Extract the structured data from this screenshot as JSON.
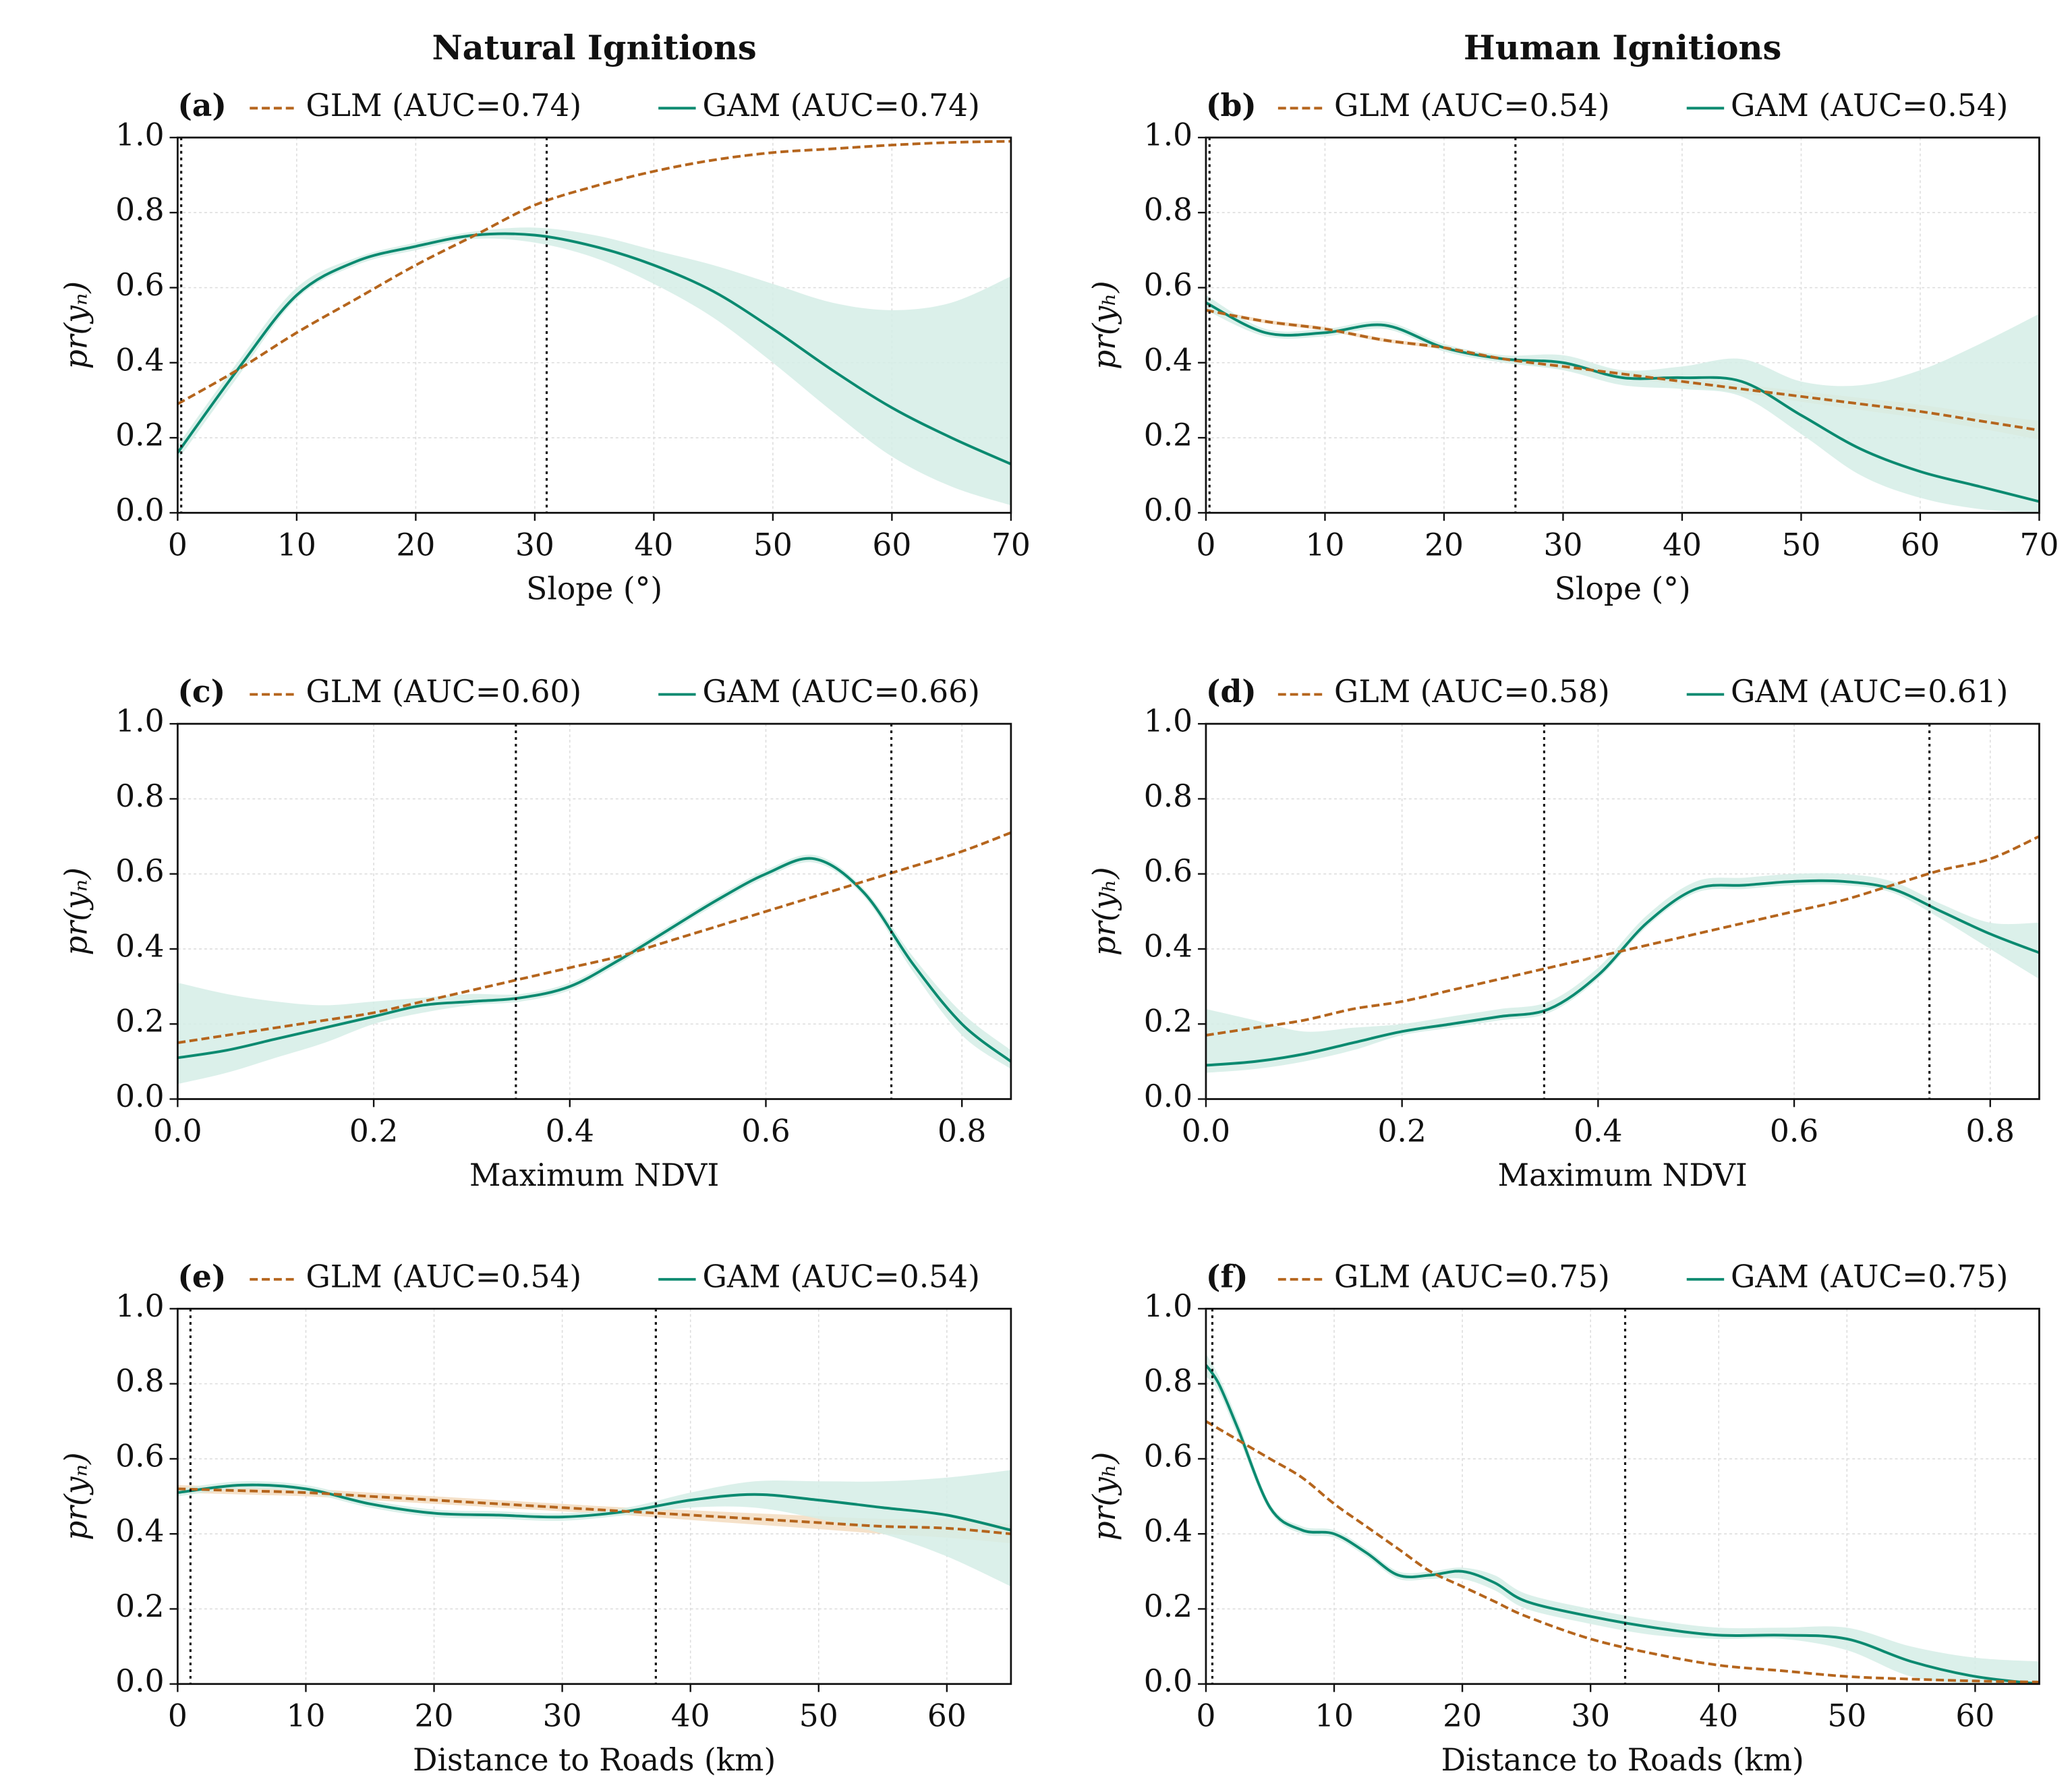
{
  "column_titles": [
    "Natural Ignitions",
    "Human Ignitions"
  ],
  "chart_data": [
    {
      "type": "line",
      "panel_label": "(a)",
      "xlabel": "Slope (°)",
      "ylabel": "pr(yₙ)",
      "x": [
        0,
        5,
        10,
        15,
        20,
        25,
        30,
        35,
        40,
        45,
        50,
        55,
        60,
        65,
        70
      ],
      "series": [
        {
          "name": "GLM (AUC=0.74)",
          "color": "#b5651d",
          "dash": true,
          "values": [
            0.29,
            0.38,
            0.48,
            0.57,
            0.66,
            0.74,
            0.82,
            0.87,
            0.91,
            0.94,
            0.96,
            0.97,
            0.98,
            0.987,
            0.99
          ]
        },
        {
          "name": "GAM (AUC=0.74)",
          "color": "#0b8a70",
          "band_color": "#d5ede6",
          "values": [
            0.16,
            0.38,
            0.58,
            0.67,
            0.71,
            0.74,
            0.74,
            0.71,
            0.66,
            0.59,
            0.49,
            0.38,
            0.28,
            0.2,
            0.13
          ],
          "lower": [
            0.14,
            0.36,
            0.57,
            0.66,
            0.7,
            0.73,
            0.72,
            0.68,
            0.61,
            0.52,
            0.4,
            0.27,
            0.15,
            0.07,
            0.02
          ],
          "upper": [
            0.18,
            0.4,
            0.6,
            0.68,
            0.72,
            0.75,
            0.76,
            0.74,
            0.7,
            0.66,
            0.61,
            0.56,
            0.54,
            0.56,
            0.63
          ]
        }
      ],
      "vlines": [
        0.3,
        31
      ],
      "xlim": [
        0,
        70
      ],
      "ylim": [
        0,
        1
      ],
      "xticks": [
        0,
        10,
        20,
        30,
        40,
        50,
        60,
        70
      ],
      "yticks": [
        {
          "value": 0,
          "label": "0.0"
        },
        0.2,
        0.4,
        0.6,
        0.8,
        {
          "value": 1,
          "label": "1.0"
        }
      ],
      "grid": true
    },
    {
      "type": "line",
      "panel_label": "(b)",
      "xlabel": "Slope (°)",
      "ylabel": "pr(yₕ)",
      "x": [
        0,
        5,
        10,
        15,
        20,
        25,
        30,
        35,
        40,
        45,
        50,
        55,
        60,
        65,
        70
      ],
      "series": [
        {
          "name": "GLM (AUC=0.54)",
          "color": "#b5651d",
          "dash": true,
          "band_color": "#f3dcc0",
          "values": [
            0.54,
            0.51,
            0.49,
            0.46,
            0.44,
            0.41,
            0.39,
            0.37,
            0.35,
            0.33,
            0.31,
            0.29,
            0.27,
            0.245,
            0.22
          ],
          "lower": [
            0.535,
            0.505,
            0.485,
            0.455,
            0.435,
            0.405,
            0.383,
            0.362,
            0.34,
            0.318,
            0.296,
            0.274,
            0.252,
            0.225,
            0.195
          ],
          "upper": [
            0.545,
            0.515,
            0.495,
            0.465,
            0.445,
            0.415,
            0.397,
            0.378,
            0.36,
            0.342,
            0.324,
            0.306,
            0.288,
            0.265,
            0.245
          ]
        },
        {
          "name": "GAM (AUC=0.54)",
          "color": "#0b8a70",
          "band_color": "#d5ede6",
          "values": [
            0.56,
            0.48,
            0.48,
            0.5,
            0.44,
            0.41,
            0.4,
            0.36,
            0.36,
            0.35,
            0.26,
            0.17,
            0.11,
            0.07,
            0.03
          ],
          "lower": [
            0.54,
            0.47,
            0.47,
            0.49,
            0.43,
            0.4,
            0.38,
            0.34,
            0.33,
            0.31,
            0.21,
            0.1,
            0.04,
            0.01,
            0
          ],
          "upper": [
            0.58,
            0.49,
            0.49,
            0.51,
            0.45,
            0.42,
            0.42,
            0.38,
            0.39,
            0.41,
            0.35,
            0.34,
            0.38,
            0.45,
            0.53
          ]
        }
      ],
      "vlines": [
        0.3,
        26
      ],
      "xlim": [
        0,
        70
      ],
      "ylim": [
        0,
        1
      ],
      "xticks": [
        0,
        10,
        20,
        30,
        40,
        50,
        60,
        70
      ],
      "yticks": [
        {
          "value": 0,
          "label": "0.0"
        },
        0.2,
        0.4,
        0.6,
        0.8,
        {
          "value": 1,
          "label": "1.0"
        }
      ],
      "grid": true
    },
    {
      "type": "line",
      "panel_label": "(c)",
      "xlabel": "Maximum NDVI",
      "ylabel": "pr(yₙ)",
      "x": [
        0,
        0.05,
        0.1,
        0.15,
        0.2,
        0.25,
        0.3,
        0.35,
        0.4,
        0.45,
        0.5,
        0.55,
        0.6,
        0.65,
        0.7,
        0.75,
        0.8,
        0.85
      ],
      "series": [
        {
          "name": "GLM (AUC=0.60)",
          "color": "#b5651d",
          "dash": true,
          "values": [
            0.15,
            0.17,
            0.19,
            0.21,
            0.23,
            0.26,
            0.29,
            0.32,
            0.35,
            0.38,
            0.42,
            0.46,
            0.5,
            0.54,
            0.58,
            0.62,
            0.66,
            0.71
          ]
        },
        {
          "name": "GAM (AUC=0.66)",
          "color": "#0b8a70",
          "band_color": "#d5ede6",
          "values": [
            0.11,
            0.13,
            0.16,
            0.19,
            0.22,
            0.25,
            0.26,
            0.27,
            0.3,
            0.37,
            0.45,
            0.53,
            0.6,
            0.64,
            0.55,
            0.36,
            0.2,
            0.1
          ],
          "lower": [
            0.04,
            0.07,
            0.11,
            0.15,
            0.2,
            0.23,
            0.25,
            0.26,
            0.29,
            0.36,
            0.44,
            0.52,
            0.59,
            0.63,
            0.54,
            0.34,
            0.17,
            0.08
          ],
          "upper": [
            0.31,
            0.28,
            0.26,
            0.25,
            0.26,
            0.27,
            0.28,
            0.28,
            0.31,
            0.38,
            0.46,
            0.54,
            0.61,
            0.65,
            0.56,
            0.38,
            0.23,
            0.13
          ]
        }
      ],
      "vlines": [
        0.345,
        0.728
      ],
      "xlim": [
        0,
        0.85
      ],
      "ylim": [
        0,
        1
      ],
      "xticks": [
        {
          "value": 0,
          "label": "0.0"
        },
        0.2,
        0.4,
        0.6,
        0.8
      ],
      "yticks": [
        {
          "value": 0,
          "label": "0.0"
        },
        0.2,
        0.4,
        0.6,
        0.8,
        {
          "value": 1,
          "label": "1.0"
        }
      ],
      "grid": true
    },
    {
      "type": "line",
      "panel_label": "(d)",
      "xlabel": "Maximum NDVI",
      "ylabel": "pr(yₕ)",
      "x": [
        0,
        0.05,
        0.1,
        0.15,
        0.2,
        0.25,
        0.3,
        0.35,
        0.4,
        0.45,
        0.5,
        0.55,
        0.6,
        0.65,
        0.7,
        0.75,
        0.8,
        0.85
      ],
      "series": [
        {
          "name": "GLM (AUC=0.58)",
          "color": "#b5651d",
          "dash": true,
          "values": [
            0.17,
            0.19,
            0.21,
            0.24,
            0.26,
            0.29,
            0.32,
            0.35,
            0.38,
            0.41,
            0.44,
            0.47,
            0.5,
            0.53,
            0.57,
            0.61,
            0.64,
            0.7
          ]
        },
        {
          "name": "GAM (AUC=0.61)",
          "color": "#0b8a70",
          "band_color": "#d5ede6",
          "values": [
            0.09,
            0.1,
            0.12,
            0.15,
            0.18,
            0.2,
            0.22,
            0.24,
            0.33,
            0.47,
            0.56,
            0.57,
            0.58,
            0.58,
            0.56,
            0.5,
            0.44,
            0.39
          ],
          "lower": [
            0.07,
            0.08,
            0.1,
            0.13,
            0.17,
            0.19,
            0.21,
            0.23,
            0.32,
            0.46,
            0.55,
            0.56,
            0.57,
            0.57,
            0.55,
            0.48,
            0.4,
            0.32
          ],
          "upper": [
            0.24,
            0.21,
            0.18,
            0.19,
            0.2,
            0.22,
            0.24,
            0.26,
            0.35,
            0.49,
            0.58,
            0.59,
            0.6,
            0.6,
            0.58,
            0.52,
            0.47,
            0.47
          ]
        }
      ],
      "vlines": [
        0.345,
        0.738
      ],
      "xlim": [
        0,
        0.85
      ],
      "ylim": [
        0,
        1
      ],
      "xticks": [
        {
          "value": 0,
          "label": "0.0"
        },
        0.2,
        0.4,
        0.6,
        0.8
      ],
      "yticks": [
        {
          "value": 0,
          "label": "0.0"
        },
        0.2,
        0.4,
        0.6,
        0.8,
        {
          "value": 1,
          "label": "1.0"
        }
      ],
      "grid": true
    },
    {
      "type": "line",
      "panel_label": "(e)",
      "xlabel": "Distance to Roads (km)",
      "ylabel": "pr(yₙ)",
      "x": [
        0,
        5,
        10,
        15,
        20,
        25,
        30,
        35,
        40,
        45,
        50,
        55,
        60,
        65
      ],
      "series": [
        {
          "name": "GLM (AUC=0.54)",
          "color": "#b5651d",
          "dash": true,
          "band_color": "#f3dcc0",
          "values": [
            0.52,
            0.515,
            0.51,
            0.5,
            0.49,
            0.48,
            0.47,
            0.46,
            0.45,
            0.44,
            0.43,
            0.42,
            0.415,
            0.4
          ],
          "lower": [
            0.51,
            0.505,
            0.5,
            0.49,
            0.48,
            0.47,
            0.46,
            0.45,
            0.437,
            0.425,
            0.413,
            0.4,
            0.39,
            0.375
          ],
          "upper": [
            0.53,
            0.525,
            0.52,
            0.51,
            0.5,
            0.49,
            0.48,
            0.47,
            0.463,
            0.455,
            0.447,
            0.44,
            0.44,
            0.425
          ]
        },
        {
          "name": "GAM (AUC=0.54)",
          "color": "#0b8a70",
          "band_color": "#d5ede6",
          "values": [
            0.51,
            0.53,
            0.52,
            0.48,
            0.455,
            0.45,
            0.445,
            0.46,
            0.49,
            0.505,
            0.49,
            0.47,
            0.45,
            0.41
          ],
          "lower": [
            0.5,
            0.52,
            0.51,
            0.47,
            0.445,
            0.44,
            0.435,
            0.45,
            0.47,
            0.47,
            0.44,
            0.4,
            0.34,
            0.26
          ],
          "upper": [
            0.52,
            0.54,
            0.53,
            0.49,
            0.465,
            0.46,
            0.455,
            0.47,
            0.51,
            0.54,
            0.54,
            0.54,
            0.55,
            0.57
          ]
        }
      ],
      "vlines": [
        1,
        37.3
      ],
      "xlim": [
        0,
        65
      ],
      "ylim": [
        0,
        1
      ],
      "xticks": [
        0,
        10,
        20,
        30,
        40,
        50,
        60
      ],
      "yticks": [
        {
          "value": 0,
          "label": "0.0"
        },
        0.2,
        0.4,
        0.6,
        0.8,
        {
          "value": 1,
          "label": "1.0"
        }
      ],
      "grid": true
    },
    {
      "type": "line",
      "panel_label": "(f)",
      "xlabel": "Distance to Roads (km)",
      "ylabel": "pr(yₕ)",
      "x": [
        0,
        1,
        2.5,
        5,
        7.5,
        10,
        12.5,
        15,
        17.5,
        20,
        22.5,
        25,
        30,
        35,
        40,
        45,
        50,
        55,
        60,
        65
      ],
      "series": [
        {
          "name": "GLM (AUC=0.75)",
          "color": "#b5651d",
          "dash": true,
          "values": [
            0.7,
            0.68,
            0.65,
            0.6,
            0.55,
            0.48,
            0.42,
            0.36,
            0.3,
            0.26,
            0.22,
            0.18,
            0.12,
            0.08,
            0.05,
            0.035,
            0.02,
            0.013,
            0.008,
            0.005
          ]
        },
        {
          "name": "GAM (AUC=0.75)",
          "color": "#0b8a70",
          "band_color": "#d5ede6",
          "values": [
            0.85,
            0.8,
            0.68,
            0.47,
            0.41,
            0.4,
            0.35,
            0.29,
            0.29,
            0.3,
            0.27,
            0.22,
            0.18,
            0.15,
            0.13,
            0.13,
            0.12,
            0.06,
            0.02,
            0
          ],
          "lower": [
            0.82,
            0.78,
            0.66,
            0.46,
            0.4,
            0.39,
            0.34,
            0.28,
            0.28,
            0.28,
            0.25,
            0.2,
            0.16,
            0.13,
            0.12,
            0.12,
            0.09,
            0.02,
            0,
            0
          ],
          "upper": [
            0.88,
            0.82,
            0.7,
            0.48,
            0.42,
            0.41,
            0.36,
            0.3,
            0.3,
            0.31,
            0.29,
            0.24,
            0.2,
            0.17,
            0.15,
            0.15,
            0.15,
            0.1,
            0.07,
            0.06
          ]
        }
      ],
      "vlines": [
        0.5,
        32.7
      ],
      "xlim": [
        0,
        65
      ],
      "ylim": [
        0,
        1
      ],
      "xticks": [
        0,
        10,
        20,
        30,
        40,
        50,
        60
      ],
      "yticks": [
        {
          "value": 0,
          "label": "0.0"
        },
        0.2,
        0.4,
        0.6,
        0.8,
        {
          "value": 1,
          "label": "1.0"
        }
      ],
      "grid": true
    }
  ]
}
